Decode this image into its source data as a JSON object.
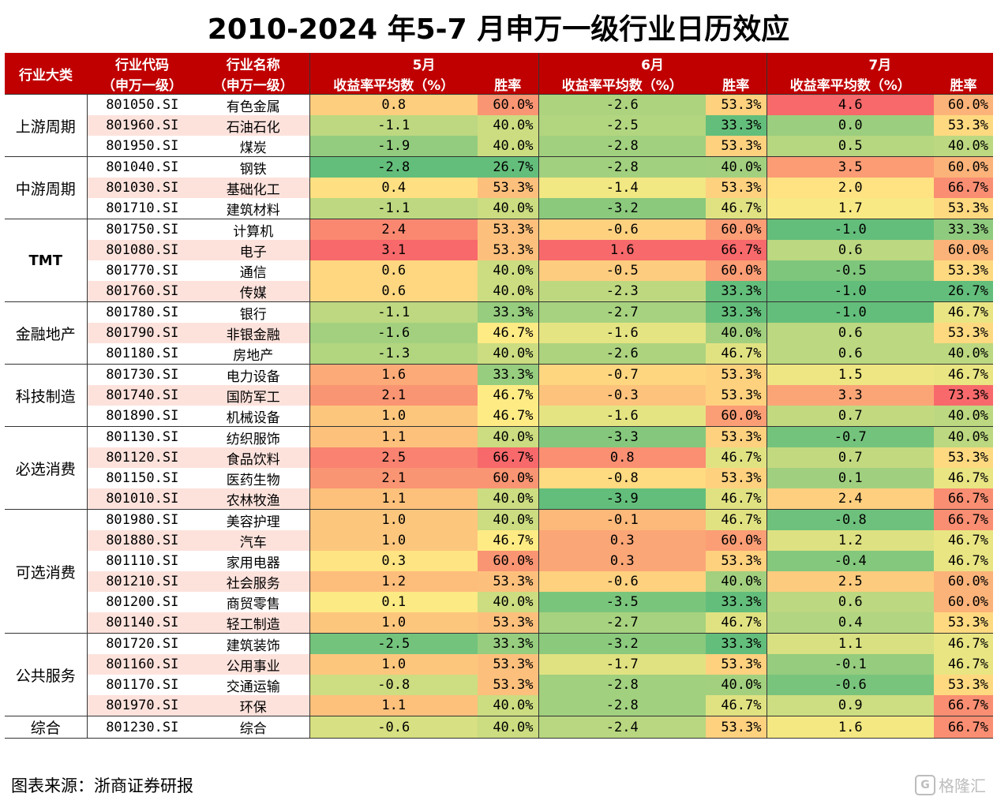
{
  "title": "2010-2024 年5-7 月申万一级行业日历效应",
  "source": "图表来源：浙商证券研报",
  "watermark": "格隆汇",
  "header": {
    "category_label": "行业大类",
    "code_label_1": "行业代码",
    "code_label_2": "（申万一级）",
    "name_label_1": "行业名称",
    "name_label_2": "（申万一级）",
    "months": [
      "5月",
      "6月",
      "7月"
    ],
    "avg_return_label": "收益率平均数（%）",
    "win_rate_label": "胜率"
  },
  "chart_data": {
    "type": "table",
    "columns": [
      "行业大类",
      "行业代码",
      "行业名称",
      "5月收益率平均数（%）",
      "5月胜率",
      "6月收益率平均数（%）",
      "6月胜率",
      "7月收益率平均数（%）",
      "7月胜率"
    ],
    "groups": [
      {
        "category": "上游周期",
        "rows": [
          {
            "code": "801050.SI",
            "name": "有色金属",
            "m5": 0.8,
            "w5": "60.0%",
            "m6": -2.6,
            "w6": "53.3%",
            "m7": 4.6,
            "w7": "60.0%"
          },
          {
            "code": "801960.SI",
            "name": "石油石化",
            "m5": -1.1,
            "w5": "40.0%",
            "m6": -2.5,
            "w6": "33.3%",
            "m7": 0.0,
            "w7": "53.3%"
          },
          {
            "code": "801950.SI",
            "name": "煤炭",
            "m5": -1.9,
            "w5": "40.0%",
            "m6": -2.8,
            "w6": "53.3%",
            "m7": 0.5,
            "w7": "40.0%"
          }
        ]
      },
      {
        "category": "中游周期",
        "rows": [
          {
            "code": "801040.SI",
            "name": "钢铁",
            "m5": -2.8,
            "w5": "26.7%",
            "m6": -2.8,
            "w6": "40.0%",
            "m7": 3.5,
            "w7": "60.0%"
          },
          {
            "code": "801030.SI",
            "name": "基础化工",
            "m5": 0.4,
            "w5": "53.3%",
            "m6": -1.4,
            "w6": "53.3%",
            "m7": 2.0,
            "w7": "66.7%"
          },
          {
            "code": "801710.SI",
            "name": "建筑材料",
            "m5": -1.1,
            "w5": "40.0%",
            "m6": -3.2,
            "w6": "46.7%",
            "m7": 1.7,
            "w7": "53.3%"
          }
        ]
      },
      {
        "category": "TMT",
        "rows": [
          {
            "code": "801750.SI",
            "name": "计算机",
            "m5": 2.4,
            "w5": "53.3%",
            "m6": -0.6,
            "w6": "60.0%",
            "m7": -1.0,
            "w7": "33.3%"
          },
          {
            "code": "801080.SI",
            "name": "电子",
            "m5": 3.1,
            "w5": "53.3%",
            "m6": 1.6,
            "w6": "66.7%",
            "m7": 0.6,
            "w7": "60.0%"
          },
          {
            "code": "801770.SI",
            "name": "通信",
            "m5": 0.6,
            "w5": "40.0%",
            "m6": -0.5,
            "w6": "60.0%",
            "m7": -0.5,
            "w7": "53.3%"
          },
          {
            "code": "801760.SI",
            "name": "传媒",
            "m5": 0.6,
            "w5": "40.0%",
            "m6": -2.3,
            "w6": "33.3%",
            "m7": -1.0,
            "w7": "26.7%"
          }
        ]
      },
      {
        "category": "金融地产",
        "rows": [
          {
            "code": "801780.SI",
            "name": "银行",
            "m5": -1.1,
            "w5": "33.3%",
            "m6": -2.7,
            "w6": "33.3%",
            "m7": -1.0,
            "w7": "46.7%"
          },
          {
            "code": "801790.SI",
            "name": "非银金融",
            "m5": -1.6,
            "w5": "46.7%",
            "m6": -1.6,
            "w6": "40.0%",
            "m7": 0.6,
            "w7": "53.3%"
          },
          {
            "code": "801180.SI",
            "name": "房地产",
            "m5": -1.3,
            "w5": "40.0%",
            "m6": -2.6,
            "w6": "46.7%",
            "m7": 0.6,
            "w7": "40.0%"
          }
        ]
      },
      {
        "category": "科技制造",
        "rows": [
          {
            "code": "801730.SI",
            "name": "电力设备",
            "m5": 1.6,
            "w5": "33.3%",
            "m6": -0.7,
            "w6": "53.3%",
            "m7": 1.5,
            "w7": "46.7%"
          },
          {
            "code": "801740.SI",
            "name": "国防军工",
            "m5": 2.1,
            "w5": "46.7%",
            "m6": -0.3,
            "w6": "53.3%",
            "m7": 3.3,
            "w7": "73.3%"
          },
          {
            "code": "801890.SI",
            "name": "机械设备",
            "m5": 1.0,
            "w5": "46.7%",
            "m6": -1.6,
            "w6": "60.0%",
            "m7": 0.7,
            "w7": "40.0%"
          }
        ]
      },
      {
        "category": "必选消费",
        "rows": [
          {
            "code": "801130.SI",
            "name": "纺织服饰",
            "m5": 1.1,
            "w5": "40.0%",
            "m6": -3.3,
            "w6": "53.3%",
            "m7": -0.7,
            "w7": "40.0%"
          },
          {
            "code": "801120.SI",
            "name": "食品饮料",
            "m5": 2.5,
            "w5": "66.7%",
            "m6": 0.8,
            "w6": "46.7%",
            "m7": 0.7,
            "w7": "53.3%"
          },
          {
            "code": "801150.SI",
            "name": "医药生物",
            "m5": 2.1,
            "w5": "60.0%",
            "m6": -0.8,
            "w6": "53.3%",
            "m7": 0.1,
            "w7": "46.7%"
          },
          {
            "code": "801010.SI",
            "name": "农林牧渔",
            "m5": 1.1,
            "w5": "40.0%",
            "m6": -3.9,
            "w6": "46.7%",
            "m7": 2.4,
            "w7": "66.7%"
          }
        ]
      },
      {
        "category": "可选消费",
        "rows": [
          {
            "code": "801980.SI",
            "name": "美容护理",
            "m5": 1.0,
            "w5": "40.0%",
            "m6": -0.1,
            "w6": "46.7%",
            "m7": -0.8,
            "w7": "66.7%"
          },
          {
            "code": "801880.SI",
            "name": "汽车",
            "m5": 1.0,
            "w5": "46.7%",
            "m6": 0.3,
            "w6": "60.0%",
            "m7": 1.2,
            "w7": "46.7%"
          },
          {
            "code": "801110.SI",
            "name": "家用电器",
            "m5": 0.3,
            "w5": "60.0%",
            "m6": 0.3,
            "w6": "53.3%",
            "m7": -0.4,
            "w7": "46.7%"
          },
          {
            "code": "801210.SI",
            "name": "社会服务",
            "m5": 1.2,
            "w5": "53.3%",
            "m6": -0.6,
            "w6": "40.0%",
            "m7": 2.5,
            "w7": "60.0%"
          },
          {
            "code": "801200.SI",
            "name": "商贸零售",
            "m5": 0.1,
            "w5": "40.0%",
            "m6": -3.5,
            "w6": "33.3%",
            "m7": 0.6,
            "w7": "60.0%"
          },
          {
            "code": "801140.SI",
            "name": "轻工制造",
            "m5": 1.0,
            "w5": "53.3%",
            "m6": -2.7,
            "w6": "46.7%",
            "m7": 0.4,
            "w7": "53.3%"
          }
        ]
      },
      {
        "category": "公共服务",
        "rows": [
          {
            "code": "801720.SI",
            "name": "建筑装饰",
            "m5": -2.5,
            "w5": "33.3%",
            "m6": -3.2,
            "w6": "33.3%",
            "m7": 1.1,
            "w7": "46.7%"
          },
          {
            "code": "801160.SI",
            "name": "公用事业",
            "m5": 1.0,
            "w5": "53.3%",
            "m6": -1.7,
            "w6": "53.3%",
            "m7": -0.1,
            "w7": "46.7%"
          },
          {
            "code": "801170.SI",
            "name": "交通运输",
            "m5": -0.8,
            "w5": "53.3%",
            "m6": -2.8,
            "w6": "40.0%",
            "m7": -0.6,
            "w7": "53.3%"
          },
          {
            "code": "801970.SI",
            "name": "环保",
            "m5": 1.1,
            "w5": "40.0%",
            "m6": -2.8,
            "w6": "46.7%",
            "m7": 0.9,
            "w7": "66.7%"
          }
        ]
      },
      {
        "category": "综合",
        "rows": [
          {
            "code": "801230.SI",
            "name": "综合",
            "m5": -0.6,
            "w5": "40.0%",
            "m6": -2.4,
            "w6": "53.3%",
            "m7": 1.6,
            "w7": "66.7%"
          }
        ]
      }
    ]
  },
  "colors": {
    "header_bg": "#c00000",
    "header_text": "#ffffff",
    "row_pink": "#fde2dc",
    "scale_low": "#63be7b",
    "scale_mid": "#ffeb84",
    "scale_high": "#f8696b"
  }
}
